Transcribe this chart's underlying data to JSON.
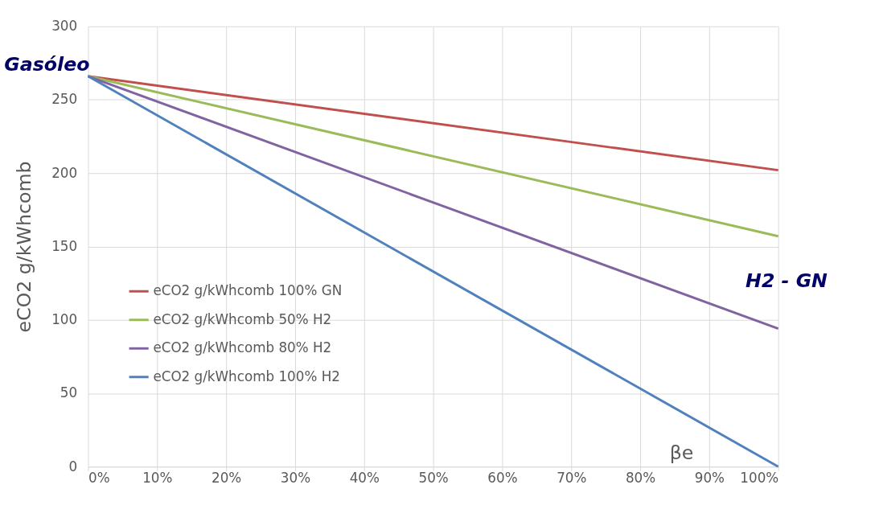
{
  "chart_data": {
    "type": "line",
    "ylabel": "eCO2 g/kWhcomb",
    "xlabel": "βe",
    "x": [
      0,
      100
    ],
    "series": [
      {
        "name": "eCO2 g/kWhcomb   100% GN",
        "color": "#c0504d",
        "values": [
          266,
          202
        ]
      },
      {
        "name": "eCO2 g/kWhcomb   50% H2",
        "color": "#9bbb59",
        "values": [
          266,
          157
        ]
      },
      {
        "name": "eCO2 g/kWhcomb   80% H2",
        "color": "#8064a2",
        "values": [
          266,
          94
        ]
      },
      {
        "name": "eCO2 g/kWhcomb   100% H2",
        "color": "#4f81bd",
        "values": [
          266,
          0
        ]
      }
    ],
    "xlim": [
      0,
      100
    ],
    "xticks": [
      {
        "value": 0,
        "label": "0%"
      },
      {
        "value": 10,
        "label": "10%"
      },
      {
        "value": 20,
        "label": "20%"
      },
      {
        "value": 30,
        "label": "30%"
      },
      {
        "value": 40,
        "label": "40%"
      },
      {
        "value": 50,
        "label": "50%"
      },
      {
        "value": 60,
        "label": "60%"
      },
      {
        "value": 70,
        "label": "70%"
      },
      {
        "value": 80,
        "label": "80%"
      },
      {
        "value": 90,
        "label": "90%"
      },
      {
        "value": 100,
        "label": "100%"
      }
    ],
    "ylim": [
      0,
      300
    ],
    "yticks": [
      0,
      50,
      100,
      150,
      200,
      250,
      300
    ],
    "grid": true,
    "legend": "left",
    "marker": "none",
    "line_style": "solid",
    "annotations": [
      {
        "text": "Gasóleo",
        "x": 0,
        "y": 266
      },
      "H2 - GN"
    ]
  }
}
